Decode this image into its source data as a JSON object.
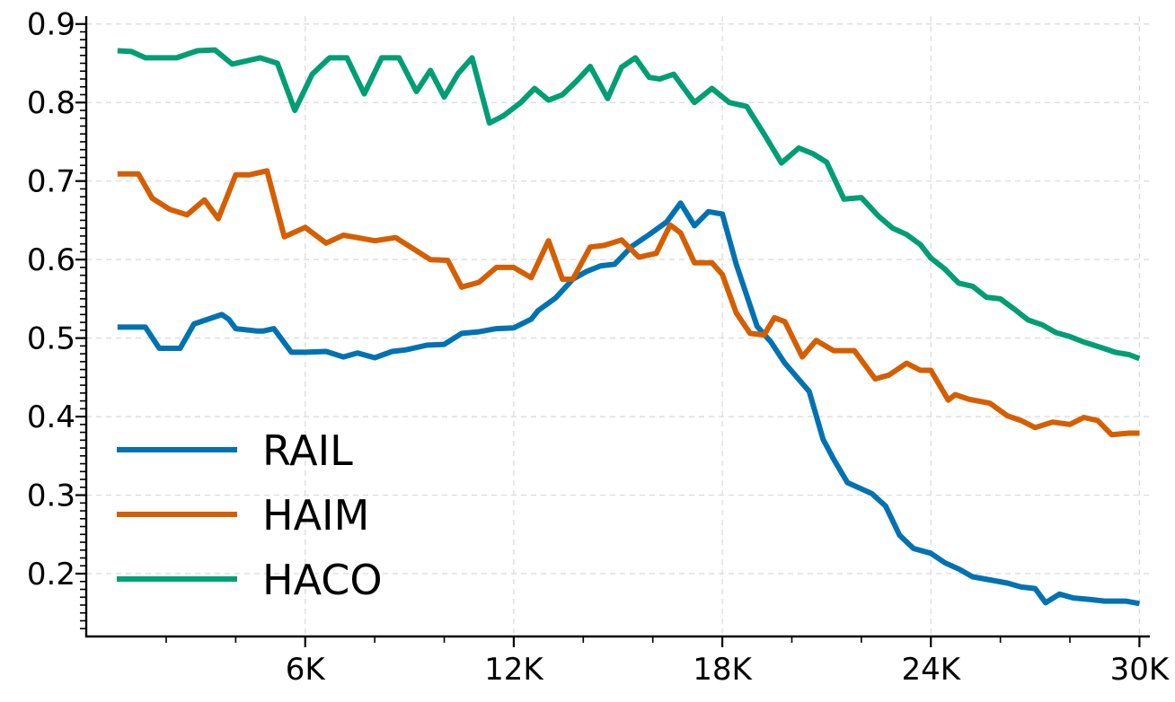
{
  "chart_data": {
    "type": "line",
    "title": "",
    "xlabel": "",
    "ylabel": "",
    "xlim": [
      -300,
      30300
    ],
    "ylim": [
      0.12,
      0.91
    ],
    "x_ticks": [
      6000,
      12000,
      18000,
      24000,
      30000
    ],
    "x_tick_labels": [
      "6K",
      "12K",
      "18K",
      "24K",
      "30K"
    ],
    "y_ticks": [
      0.2,
      0.3,
      0.4,
      0.5,
      0.6,
      0.7,
      0.8,
      0.9
    ],
    "y_tick_labels": [
      "0.2",
      "0.3",
      "0.4",
      "0.5",
      "0.6",
      "0.7",
      "0.8",
      "0.9"
    ],
    "grid": true,
    "legend_position": "lower-left",
    "series": [
      {
        "name": "RAIL",
        "color": "#0072b2",
        "points": [
          [
            600,
            0.514
          ],
          [
            1400,
            0.514
          ],
          [
            1800,
            0.487
          ],
          [
            2400,
            0.487
          ],
          [
            2800,
            0.518
          ],
          [
            3600,
            0.53
          ],
          [
            3800,
            0.524
          ],
          [
            4000,
            0.512
          ],
          [
            4600,
            0.509
          ],
          [
            4800,
            0.509
          ],
          [
            5100,
            0.512
          ],
          [
            5600,
            0.482
          ],
          [
            6000,
            0.482
          ],
          [
            6600,
            0.483
          ],
          [
            7100,
            0.476
          ],
          [
            7500,
            0.481
          ],
          [
            8000,
            0.475
          ],
          [
            8500,
            0.483
          ],
          [
            8900,
            0.485
          ],
          [
            9500,
            0.491
          ],
          [
            10000,
            0.492
          ],
          [
            10500,
            0.506
          ],
          [
            11000,
            0.508
          ],
          [
            11500,
            0.512
          ],
          [
            12000,
            0.513
          ],
          [
            12500,
            0.524
          ],
          [
            12700,
            0.535
          ],
          [
            13200,
            0.551
          ],
          [
            13700,
            0.575
          ],
          [
            14100,
            0.585
          ],
          [
            14500,
            0.592
          ],
          [
            14900,
            0.594
          ],
          [
            15400,
            0.617
          ],
          [
            15900,
            0.632
          ],
          [
            16400,
            0.648
          ],
          [
            16800,
            0.672
          ],
          [
            17200,
            0.643
          ],
          [
            17600,
            0.661
          ],
          [
            18000,
            0.658
          ],
          [
            18400,
            0.594
          ],
          [
            19000,
            0.515
          ],
          [
            19400,
            0.495
          ],
          [
            19800,
            0.468
          ],
          [
            20500,
            0.432
          ],
          [
            20900,
            0.371
          ],
          [
            21200,
            0.346
          ],
          [
            21600,
            0.316
          ],
          [
            22300,
            0.302
          ],
          [
            22700,
            0.286
          ],
          [
            23100,
            0.249
          ],
          [
            23500,
            0.232
          ],
          [
            24000,
            0.226
          ],
          [
            24400,
            0.214
          ],
          [
            24800,
            0.206
          ],
          [
            25200,
            0.196
          ],
          [
            25700,
            0.192
          ],
          [
            26200,
            0.188
          ],
          [
            26600,
            0.183
          ],
          [
            27000,
            0.181
          ],
          [
            27300,
            0.163
          ],
          [
            27700,
            0.174
          ],
          [
            28100,
            0.169
          ],
          [
            28600,
            0.167
          ],
          [
            29000,
            0.165
          ],
          [
            29600,
            0.165
          ],
          [
            30000,
            0.162
          ]
        ]
      },
      {
        "name": "HAIM",
        "color": "#d55e00",
        "points": [
          [
            600,
            0.709
          ],
          [
            1200,
            0.709
          ],
          [
            1600,
            0.678
          ],
          [
            2100,
            0.664
          ],
          [
            2600,
            0.657
          ],
          [
            3100,
            0.676
          ],
          [
            3500,
            0.652
          ],
          [
            4000,
            0.708
          ],
          [
            4400,
            0.708
          ],
          [
            4900,
            0.713
          ],
          [
            5400,
            0.629
          ],
          [
            6000,
            0.641
          ],
          [
            6600,
            0.621
          ],
          [
            7100,
            0.631
          ],
          [
            7500,
            0.628
          ],
          [
            8000,
            0.624
          ],
          [
            8600,
            0.628
          ],
          [
            9100,
            0.614
          ],
          [
            9600,
            0.6
          ],
          [
            10100,
            0.599
          ],
          [
            10500,
            0.565
          ],
          [
            11000,
            0.571
          ],
          [
            11500,
            0.59
          ],
          [
            12000,
            0.59
          ],
          [
            12500,
            0.577
          ],
          [
            13000,
            0.624
          ],
          [
            13400,
            0.575
          ],
          [
            13700,
            0.575
          ],
          [
            14200,
            0.616
          ],
          [
            14600,
            0.618
          ],
          [
            15100,
            0.625
          ],
          [
            15600,
            0.603
          ],
          [
            16100,
            0.608
          ],
          [
            16500,
            0.644
          ],
          [
            16800,
            0.634
          ],
          [
            17200,
            0.596
          ],
          [
            17700,
            0.596
          ],
          [
            18000,
            0.581
          ],
          [
            18400,
            0.532
          ],
          [
            18800,
            0.506
          ],
          [
            19200,
            0.504
          ],
          [
            19500,
            0.526
          ],
          [
            19800,
            0.521
          ],
          [
            20300,
            0.476
          ],
          [
            20700,
            0.497
          ],
          [
            21200,
            0.484
          ],
          [
            21800,
            0.484
          ],
          [
            22400,
            0.448
          ],
          [
            22800,
            0.453
          ],
          [
            23300,
            0.468
          ],
          [
            23700,
            0.459
          ],
          [
            24000,
            0.459
          ],
          [
            24500,
            0.421
          ],
          [
            24700,
            0.428
          ],
          [
            25100,
            0.422
          ],
          [
            25700,
            0.417
          ],
          [
            26200,
            0.401
          ],
          [
            26600,
            0.395
          ],
          [
            27000,
            0.386
          ],
          [
            27500,
            0.393
          ],
          [
            28000,
            0.39
          ],
          [
            28400,
            0.399
          ],
          [
            28800,
            0.395
          ],
          [
            29200,
            0.377
          ],
          [
            29700,
            0.379
          ],
          [
            30000,
            0.379
          ]
        ]
      },
      {
        "name": "HACO",
        "color": "#009e73",
        "points": [
          [
            600,
            0.866
          ],
          [
            1000,
            0.865
          ],
          [
            1400,
            0.857
          ],
          [
            2300,
            0.857
          ],
          [
            2900,
            0.866
          ],
          [
            3400,
            0.867
          ],
          [
            3900,
            0.849
          ],
          [
            4300,
            0.853
          ],
          [
            4700,
            0.857
          ],
          [
            5200,
            0.85
          ],
          [
            5700,
            0.79
          ],
          [
            6200,
            0.836
          ],
          [
            6700,
            0.857
          ],
          [
            7200,
            0.857
          ],
          [
            7700,
            0.811
          ],
          [
            8200,
            0.857
          ],
          [
            8700,
            0.857
          ],
          [
            9200,
            0.814
          ],
          [
            9600,
            0.841
          ],
          [
            10000,
            0.807
          ],
          [
            10400,
            0.837
          ],
          [
            10800,
            0.857
          ],
          [
            11300,
            0.774
          ],
          [
            11700,
            0.783
          ],
          [
            12200,
            0.8
          ],
          [
            12600,
            0.818
          ],
          [
            13000,
            0.803
          ],
          [
            13400,
            0.81
          ],
          [
            13800,
            0.827
          ],
          [
            14200,
            0.846
          ],
          [
            14700,
            0.805
          ],
          [
            15100,
            0.845
          ],
          [
            15500,
            0.857
          ],
          [
            15900,
            0.832
          ],
          [
            16200,
            0.83
          ],
          [
            16600,
            0.836
          ],
          [
            17200,
            0.8
          ],
          [
            17700,
            0.818
          ],
          [
            18200,
            0.8
          ],
          [
            18700,
            0.795
          ],
          [
            19200,
            0.76
          ],
          [
            19700,
            0.723
          ],
          [
            20200,
            0.742
          ],
          [
            20600,
            0.735
          ],
          [
            21000,
            0.724
          ],
          [
            21500,
            0.677
          ],
          [
            22000,
            0.679
          ],
          [
            22500,
            0.655
          ],
          [
            22900,
            0.64
          ],
          [
            23300,
            0.632
          ],
          [
            23700,
            0.619
          ],
          [
            24000,
            0.602
          ],
          [
            24400,
            0.588
          ],
          [
            24800,
            0.57
          ],
          [
            25200,
            0.566
          ],
          [
            25600,
            0.552
          ],
          [
            26000,
            0.55
          ],
          [
            26400,
            0.537
          ],
          [
            26800,
            0.523
          ],
          [
            27200,
            0.517
          ],
          [
            27600,
            0.507
          ],
          [
            28000,
            0.502
          ],
          [
            28400,
            0.495
          ],
          [
            28900,
            0.488
          ],
          [
            29300,
            0.482
          ],
          [
            29700,
            0.479
          ],
          [
            30000,
            0.474
          ]
        ]
      }
    ]
  }
}
